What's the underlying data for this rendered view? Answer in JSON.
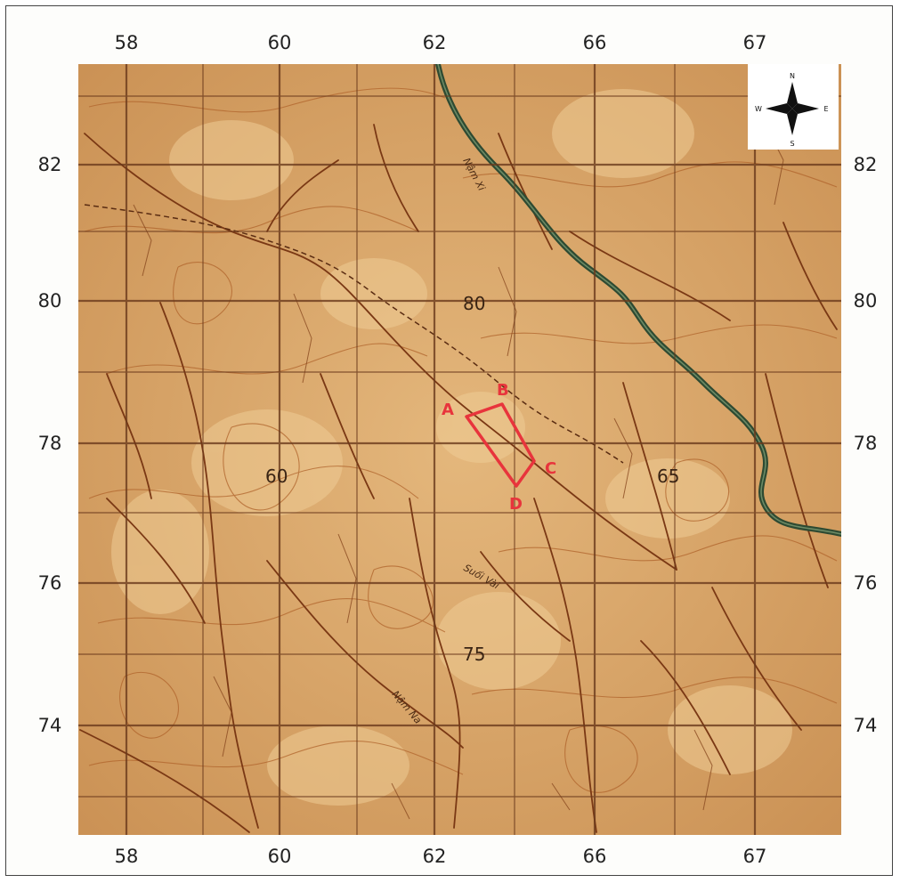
{
  "map": {
    "x_labels": [
      "58",
      "60",
      "62",
      "66",
      "67"
    ],
    "y_labels": [
      "82",
      "80",
      "78",
      "76",
      "74"
    ],
    "spot_heights": [
      "80",
      "60",
      "65",
      "75"
    ],
    "rivers": [
      "Nậm Xi",
      "Nậm Na",
      "Suối Vài"
    ],
    "area_points": [
      "A",
      "B",
      "C",
      "D"
    ],
    "compass": {
      "north": "N",
      "south": "S",
      "east": "E",
      "west": "W"
    },
    "colors": {
      "paper": "#d9a86a",
      "paper_light": "#e8c28a",
      "grid": "#6b3a1c",
      "contour": "#a0521f",
      "stream": "#7a3814",
      "river": "#2e4a32",
      "area": "#e8343c"
    }
  }
}
